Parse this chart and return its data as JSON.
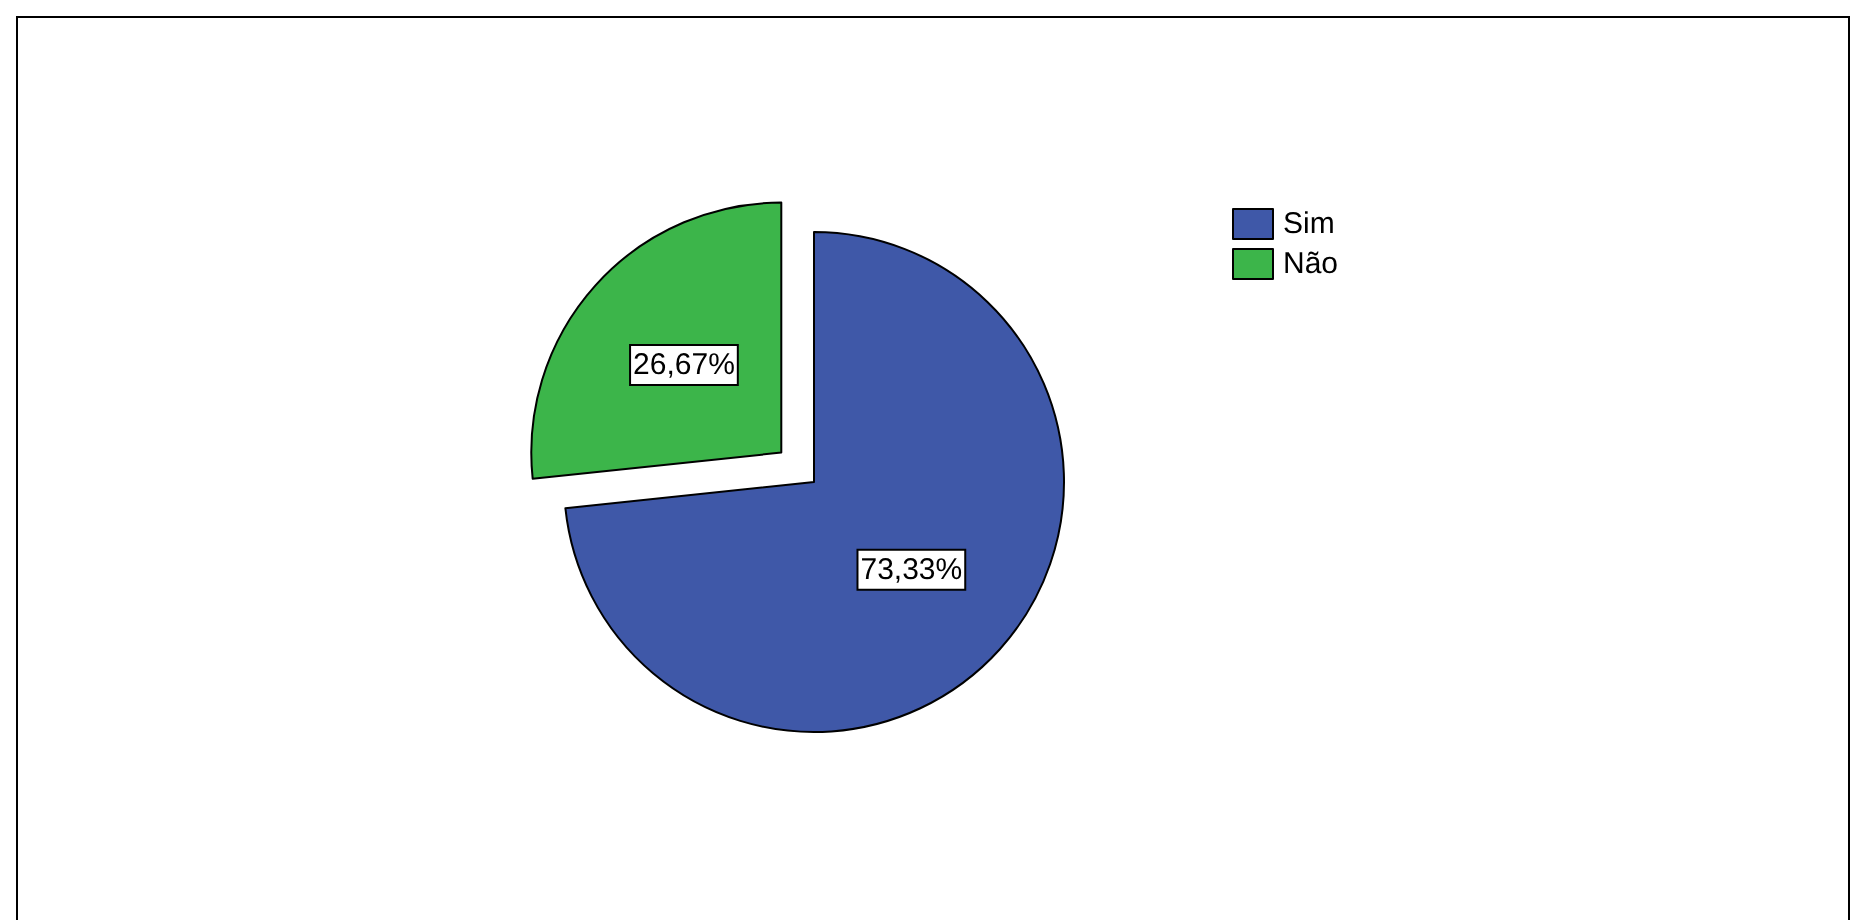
{
  "chart_data": {
    "type": "pie",
    "categories": [
      "Sim",
      "Não"
    ],
    "values": [
      73.33,
      26.67
    ],
    "colors": [
      "#3f58a8",
      "#3cb54a"
    ],
    "value_labels": [
      "73,33%",
      "26,67%"
    ],
    "legend": "top right"
  }
}
